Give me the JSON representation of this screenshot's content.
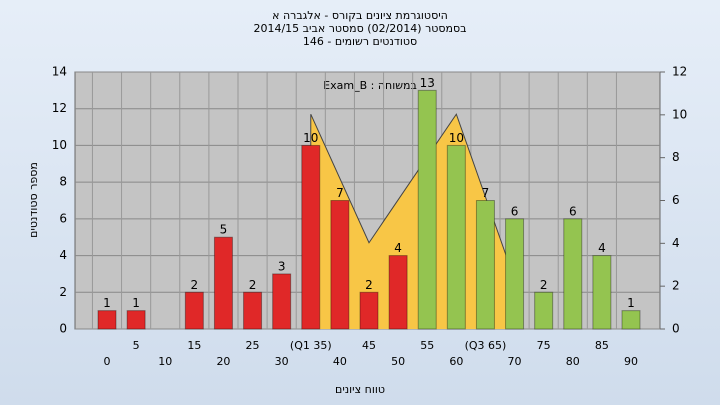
{
  "chart_data": {
    "type": "bar",
    "title": [
      "היסטוגרמת ציונים בקורס - אלגברה א",
      "בסמסטר (02/2014) סמסטר אביב 2014/15",
      "סטודנטים רשומים - 146"
    ],
    "annotation": "Exam_B : במשוחה",
    "x_label": "טווח ציונים",
    "y_label": "מספר סטודנטים",
    "categories": [
      "0",
      "5",
      "10",
      "15",
      "20",
      "25",
      "30",
      "(Q1 35)",
      "40",
      "45",
      "50",
      "55",
      "60",
      "(Q3 65)",
      "70",
      "75",
      "80",
      "85",
      "90"
    ],
    "series": [
      {
        "color": "#e02828",
        "values": [
          1,
          1,
          null,
          2,
          5,
          2,
          3,
          10,
          7,
          2,
          4,
          null,
          null,
          null,
          null,
          null,
          null,
          null,
          null
        ]
      },
      {
        "color": "#94c450",
        "values": [
          null,
          null,
          null,
          null,
          null,
          null,
          null,
          null,
          null,
          null,
          null,
          13,
          10,
          7,
          6,
          2,
          6,
          4,
          1
        ]
      }
    ],
    "area": {
      "color": "#f8c646",
      "x": [
        7,
        7,
        9,
        12,
        14,
        14
      ],
      "values": [
        0,
        11.7,
        4.7,
        11.7,
        2.7,
        0
      ]
    },
    "ylim": [
      0,
      14
    ],
    "yticks": [
      0,
      2,
      4,
      6,
      8,
      10,
      12,
      14
    ],
    "y2lim": [
      0,
      12
    ],
    "y2ticks": [
      0,
      2,
      4,
      6,
      8,
      10,
      12
    ],
    "grid": true
  }
}
